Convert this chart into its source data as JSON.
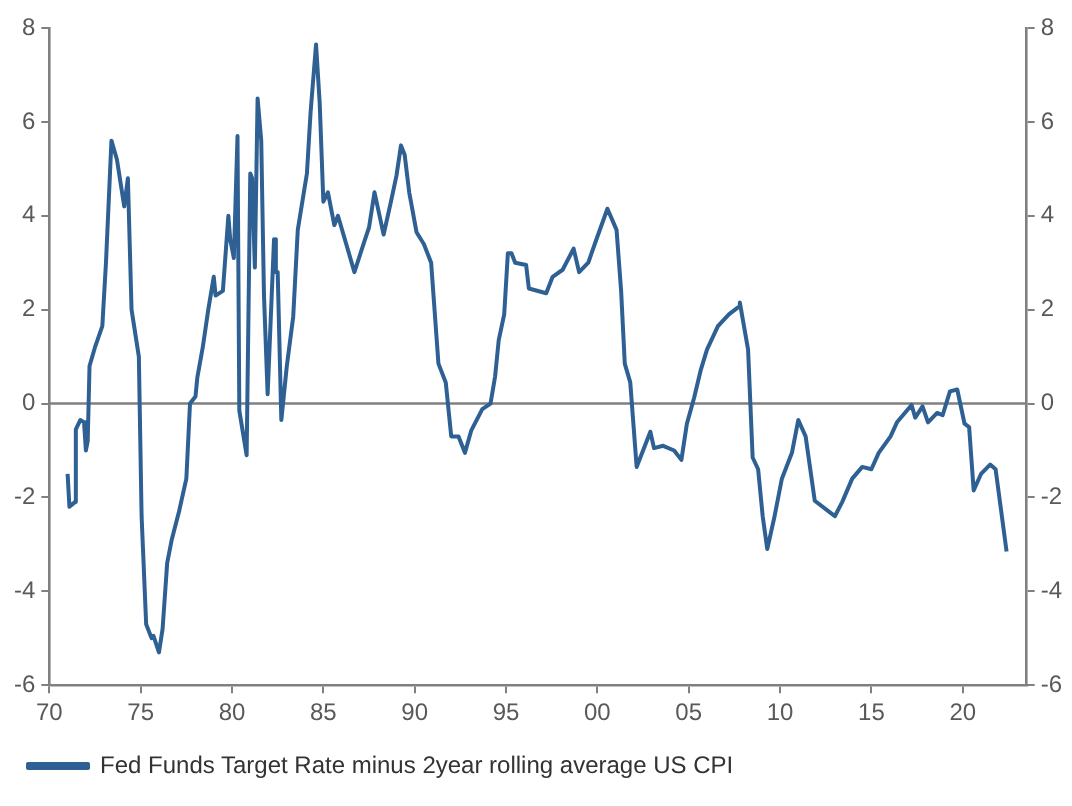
{
  "chart_data": {
    "type": "line",
    "legend": "bottom",
    "grid": false,
    "marker": "none",
    "line_style": "solid",
    "x": [
      1971.0,
      1971.1,
      1971.4,
      1971.45,
      1971.7,
      1971.9,
      1972.0,
      1972.1,
      1972.2,
      1972.5,
      1972.9,
      1973.1,
      1973.4,
      1973.7,
      1974.1,
      1974.3,
      1974.5,
      1974.9,
      1975.05,
      1975.3,
      1975.6,
      1975.7,
      1976.0,
      1976.2,
      1976.45,
      1976.7,
      1977.1,
      1977.5,
      1977.7,
      1978.0,
      1978.1,
      1978.4,
      1978.7,
      1979.0,
      1979.1,
      1979.5,
      1979.8,
      1979.9,
      1980.1,
      1980.3,
      1980.4,
      1980.8,
      1981.0,
      1981.1,
      1981.25,
      1981.4,
      1981.6,
      1981.75,
      1981.95,
      1982.3,
      1982.4,
      1982.5,
      1982.7,
      1983.0,
      1983.35,
      1983.6,
      1984.1,
      1984.3,
      1984.6,
      1984.8,
      1985.0,
      1985.25,
      1985.6,
      1985.8,
      1986.1,
      1986.7,
      1987.2,
      1987.5,
      1987.8,
      1988.3,
      1988.7,
      1989.0,
      1989.25,
      1989.45,
      1989.7,
      1990.1,
      1990.5,
      1990.9,
      1991.3,
      1991.7,
      1992.0,
      1992.4,
      1992.75,
      1993.1,
      1993.7,
      1994.15,
      1994.4,
      1994.6,
      1994.9,
      1995.1,
      1995.3,
      1995.5,
      1996.1,
      1996.25,
      1997.2,
      1997.55,
      1998.1,
      1998.7,
      1999.0,
      1999.5,
      1999.95,
      2000.55,
      2001.05,
      2001.3,
      2001.5,
      2001.8,
      2002.15,
      2002.9,
      2003.1,
      2003.6,
      2004.2,
      2004.6,
      2004.9,
      2005.3,
      2005.65,
      2006.0,
      2006.6,
      2007.2,
      2007.7,
      2007.8,
      2008.25,
      2008.5,
      2008.8,
      2009.05,
      2009.3,
      2009.7,
      2010.1,
      2010.65,
      2011.0,
      2011.4,
      2011.9,
      2012.5,
      2013.0,
      2013.4,
      2013.95,
      2014.5,
      2015.0,
      2015.4,
      2016.05,
      2016.4,
      2016.9,
      2017.2,
      2017.4,
      2017.8,
      2018.1,
      2018.6,
      2018.9,
      2019.3,
      2019.7,
      2020.1,
      2020.35,
      2020.6,
      2021.0,
      2021.5,
      2021.8,
      2022.4
    ],
    "series": [
      {
        "name": "Fed Funds Target Rate minus 2year rolling average US CPI",
        "color": "#2e6094",
        "values": [
          -1.5,
          -2.2,
          -2.1,
          -0.55,
          -0.35,
          -0.4,
          -1.0,
          -0.8,
          0.8,
          1.2,
          1.65,
          3.0,
          5.6,
          5.2,
          4.2,
          4.8,
          2.0,
          1.0,
          -2.4,
          -4.7,
          -5.0,
          -4.95,
          -5.3,
          -4.8,
          -3.4,
          -2.9,
          -2.3,
          -1.6,
          0,
          0.15,
          0.55,
          1.2,
          2.0,
          2.7,
          2.3,
          2.4,
          4.0,
          3.5,
          3.1,
          5.7,
          -0.15,
          -1.1,
          4.9,
          4.8,
          2.9,
          6.5,
          5.6,
          2.3,
          0.2,
          3.5,
          2.8,
          2.8,
          -0.35,
          0.8,
          1.85,
          3.7,
          4.9,
          6.2,
          7.65,
          6.4,
          4.3,
          4.5,
          3.8,
          4.0,
          3.6,
          2.8,
          3.4,
          3.75,
          4.5,
          3.6,
          4.3,
          4.85,
          5.5,
          5.3,
          4.5,
          3.65,
          3.4,
          3.0,
          0.85,
          0.45,
          -0.7,
          -0.7,
          -1.05,
          -0.57,
          -0.12,
          0,
          0.57,
          1.35,
          1.9,
          3.2,
          3.2,
          3.0,
          2.95,
          2.45,
          2.35,
          2.7,
          2.85,
          3.3,
          2.8,
          3.0,
          3.5,
          4.15,
          3.7,
          2.4,
          0.85,
          0.45,
          -1.35,
          -0.6,
          -0.95,
          -0.9,
          -1.0,
          -1.2,
          -0.43,
          0.13,
          0.7,
          1.15,
          1.65,
          1.9,
          2.05,
          2.15,
          1.15,
          -1.15,
          -1.4,
          -2.4,
          -3.1,
          -2.4,
          -1.6,
          -1.05,
          -0.35,
          -0.7,
          -2.07,
          -2.25,
          -2.4,
          -2.1,
          -1.6,
          -1.35,
          -1.4,
          -1.05,
          -0.7,
          -0.4,
          -0.17,
          -0.03,
          -0.3,
          -0.06,
          -0.4,
          -0.2,
          -0.25,
          0.26,
          0.3,
          -0.43,
          -0.5,
          -1.85,
          -1.5,
          -1.3,
          -1.4,
          -3.15
        ]
      }
    ],
    "xlim": [
      1970,
      2023.5
    ],
    "xticks": [
      {
        "value": 1970,
        "label": "70"
      },
      {
        "value": 1975,
        "label": "75"
      },
      {
        "value": 1980,
        "label": "80"
      },
      {
        "value": 1985,
        "label": "85"
      },
      {
        "value": 1990,
        "label": "90"
      },
      {
        "value": 1995,
        "label": "95"
      },
      {
        "value": 2000,
        "label": "00"
      },
      {
        "value": 2005,
        "label": "05"
      },
      {
        "value": 2010,
        "label": "10"
      },
      {
        "value": 2015,
        "label": "15"
      },
      {
        "value": 2020,
        "label": "20"
      }
    ],
    "ylim": [
      -6,
      8
    ],
    "yticks": [
      -6,
      -4,
      -2,
      0,
      2,
      4,
      6,
      8
    ],
    "y2lim": [
      -6,
      8
    ],
    "y2ticks": [
      -6,
      -4,
      -2,
      0,
      2,
      4,
      6,
      8
    ],
    "ref_lines": [
      {
        "axis": "y",
        "value": 0,
        "color": "#808080"
      }
    ]
  }
}
